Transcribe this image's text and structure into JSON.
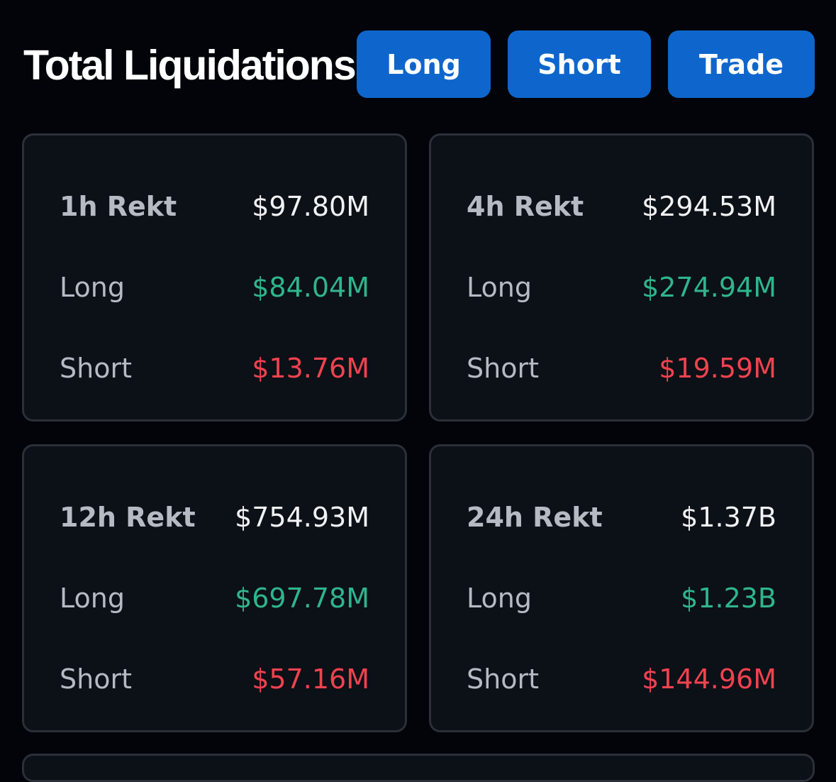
{
  "header": {
    "title": "Total Liquidations",
    "buttons": {
      "long": "Long",
      "short": "Short",
      "trade": "Trade"
    }
  },
  "cards": [
    {
      "period": "1h Rekt",
      "total": "$97.80M",
      "long_label": "Long",
      "long": "$84.04M",
      "short_label": "Short",
      "short": "$13.76M"
    },
    {
      "period": "4h Rekt",
      "total": "$294.53M",
      "long_label": "Long",
      "long": "$274.94M",
      "short_label": "Short",
      "short": "$19.59M"
    },
    {
      "period": "12h Rekt",
      "total": "$754.93M",
      "long_label": "Long",
      "long": "$697.78M",
      "short_label": "Short",
      "short": "$57.16M"
    },
    {
      "period": "24h Rekt",
      "total": "$1.37B",
      "long_label": "Long",
      "long": "$1.23B",
      "short_label": "Short",
      "short": "$144.96M"
    }
  ],
  "colors": {
    "background": "#020409",
    "card_background": "#0c1017",
    "card_border": "#2b3038",
    "button": "#0e66cc",
    "long_green": "#2fb58c",
    "short_red": "#f0424f"
  }
}
